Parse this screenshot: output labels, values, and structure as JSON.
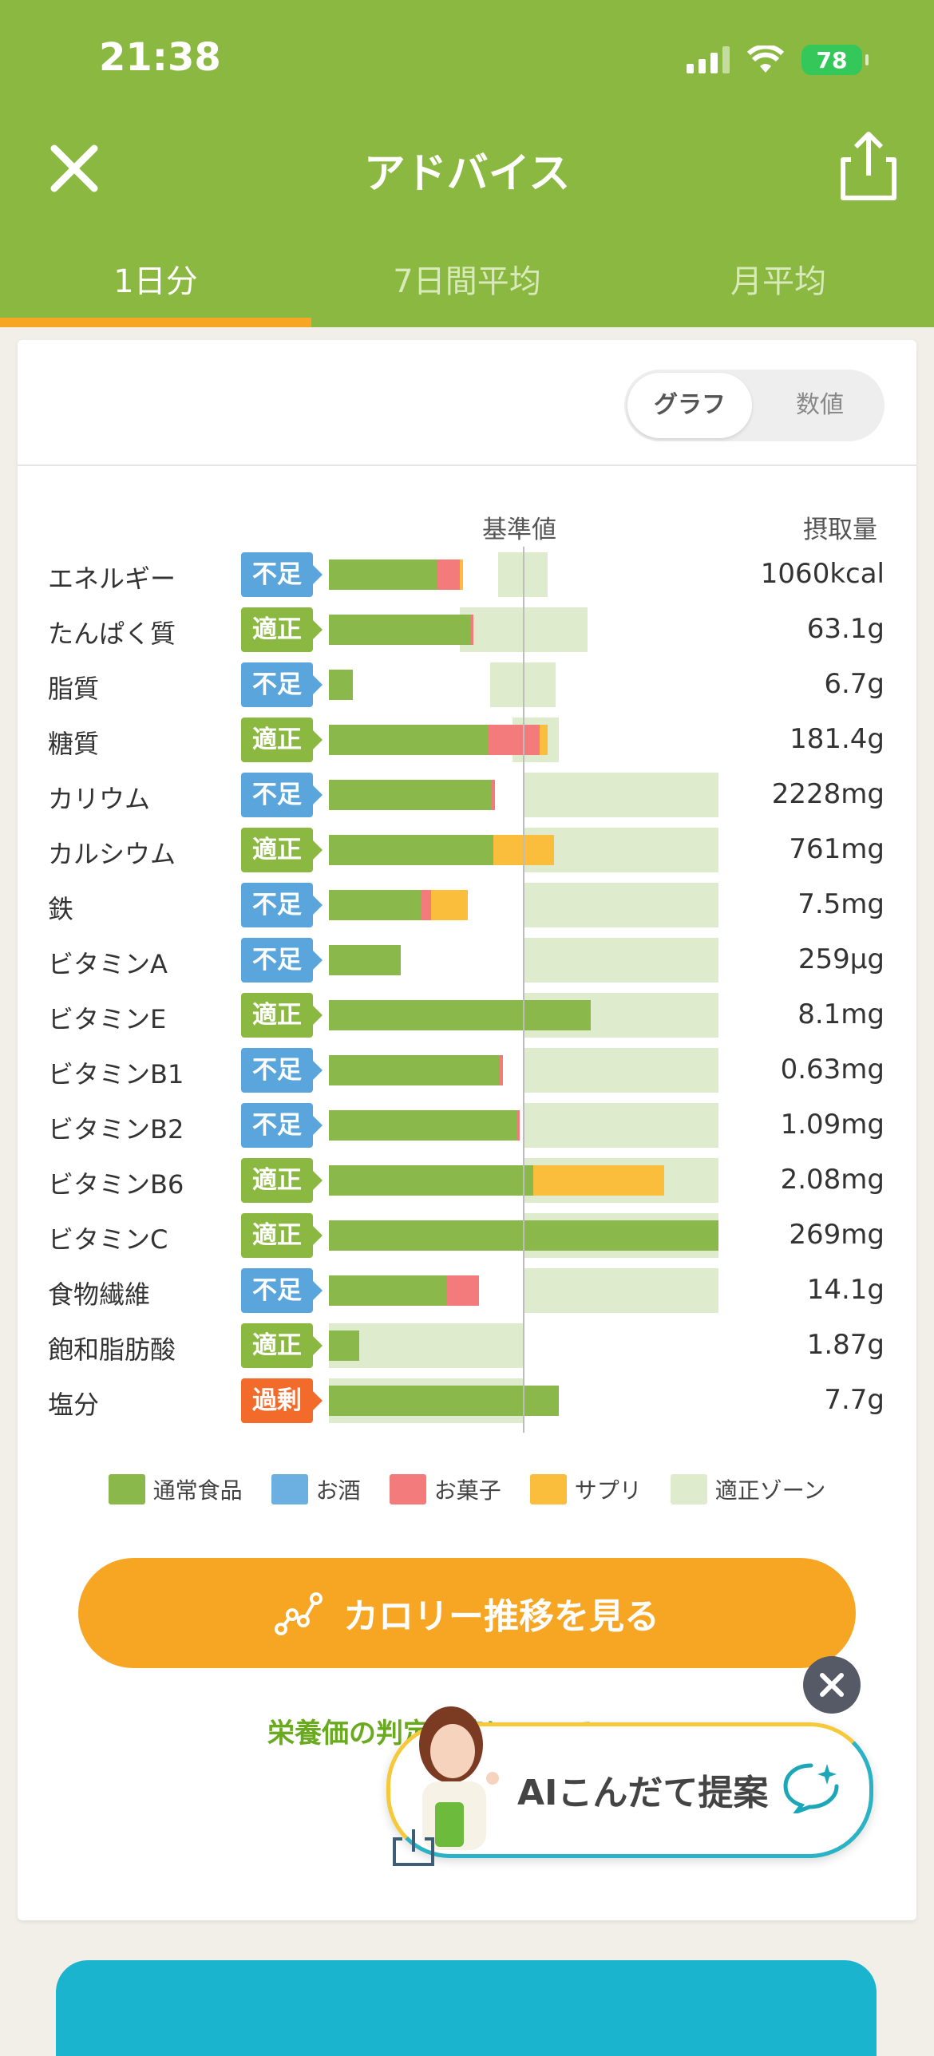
{
  "status": {
    "time": "21:38",
    "battery": "78"
  },
  "header": {
    "title": "アドバイス"
  },
  "tabs": [
    {
      "label": "1日分",
      "active": true
    },
    {
      "label": "7日間平均"
    },
    {
      "label": "月平均"
    }
  ],
  "toggle": {
    "graph": "グラフ",
    "numeric": "数値",
    "selected": "グラフ"
  },
  "columns": {
    "standard": "基準値",
    "intake": "摂取量"
  },
  "nutrients": [
    {
      "name": "エネルギー",
      "status": "不足",
      "value": "1060kcal"
    },
    {
      "name": "たんぱく質",
      "status": "適正",
      "value": "63.1g"
    },
    {
      "name": "脂質",
      "status": "不足",
      "value": "6.7g"
    },
    {
      "name": "糖質",
      "status": "適正",
      "value": "181.4g"
    },
    {
      "name": "カリウム",
      "status": "不足",
      "value": "2228mg"
    },
    {
      "name": "カルシウム",
      "status": "適正",
      "value": "761mg"
    },
    {
      "name": "鉄",
      "status": "不足",
      "value": "7.5mg"
    },
    {
      "name": "ビタミンA",
      "status": "不足",
      "value": "259μg"
    },
    {
      "name": "ビタミンE",
      "status": "適正",
      "value": "8.1mg"
    },
    {
      "name": "ビタミンB1",
      "status": "不足",
      "value": "0.63mg"
    },
    {
      "name": "ビタミンB2",
      "status": "不足",
      "value": "1.09mg"
    },
    {
      "name": "ビタミンB6",
      "status": "適正",
      "value": "2.08mg"
    },
    {
      "name": "ビタミンC",
      "status": "適正",
      "value": "269mg"
    },
    {
      "name": "食物繊維",
      "status": "不足",
      "value": "14.1g"
    },
    {
      "name": "飽和脂肪酸",
      "status": "適正",
      "value": "1.87g"
    },
    {
      "name": "塩分",
      "status": "過剰",
      "value": "7.7g"
    }
  ],
  "legend": [
    {
      "label": "通常食品",
      "color": "#8bb84a"
    },
    {
      "label": "お酒",
      "color": "#6bb0e0"
    },
    {
      "label": "お菓子",
      "color": "#f47b7b"
    },
    {
      "label": "サプリ",
      "color": "#fbbd3c"
    },
    {
      "label": "適正ゾーン",
      "color": "#dfebcd"
    }
  ],
  "status_colors": {
    "不足": "#5aa6dc",
    "適正": "#8bb840",
    "過剰": "#f26b2b"
  },
  "cta": {
    "label": "カロリー推移を見る"
  },
  "note": {
    "text": "栄養価の判定基準について"
  },
  "ai": {
    "label": "AIこんだて提案"
  }
}
